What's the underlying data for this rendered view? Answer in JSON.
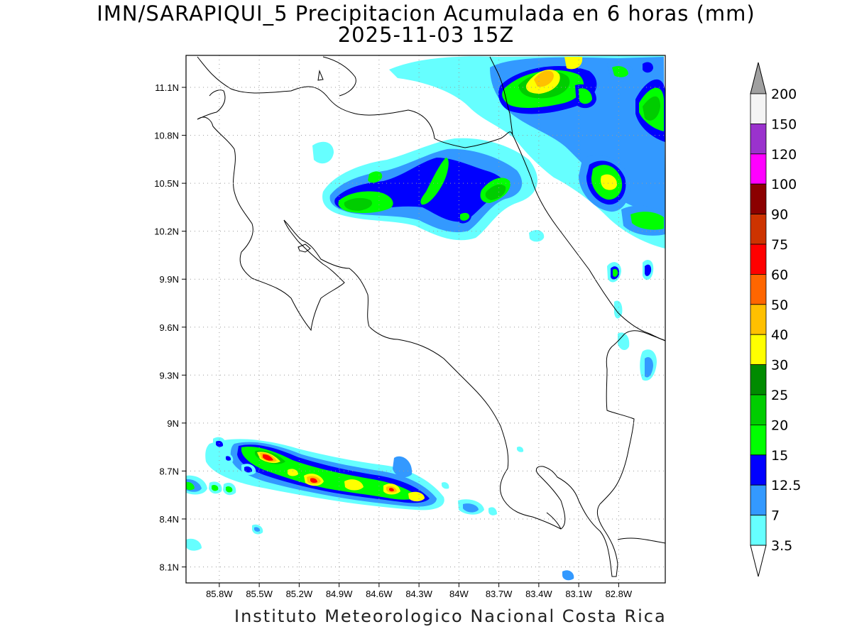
{
  "title": {
    "line1": "IMN/SARAPIQUI_5 Precipitacion Acumulada en 6 horas (mm)",
    "line2": "2025-11-03 15Z"
  },
  "credit": "Instituto Meteorologico Nacional Costa Rica",
  "map": {
    "lon_range": [
      -86.05,
      -82.45
    ],
    "lat_range": [
      8.0,
      11.3
    ],
    "lon_ticks": [
      {
        "value": -85.8,
        "label": "85.8W"
      },
      {
        "value": -85.5,
        "label": "85.5W"
      },
      {
        "value": -85.2,
        "label": "85.2W"
      },
      {
        "value": -84.9,
        "label": "84.9W"
      },
      {
        "value": -84.6,
        "label": "84.6W"
      },
      {
        "value": -84.3,
        "label": "84.3W"
      },
      {
        "value": -84.0,
        "label": "84W"
      },
      {
        "value": -83.7,
        "label": "83.7W"
      },
      {
        "value": -83.4,
        "label": "83.4W"
      },
      {
        "value": -83.1,
        "label": "83.1W"
      },
      {
        "value": -82.8,
        "label": "82.8W"
      }
    ],
    "lat_ticks": [
      {
        "value": 11.1,
        "label": "11.1N"
      },
      {
        "value": 10.8,
        "label": "10.8N"
      },
      {
        "value": 10.5,
        "label": "10.5N"
      },
      {
        "value": 10.2,
        "label": "10.2N"
      },
      {
        "value": 9.9,
        "label": "9.9N"
      },
      {
        "value": 9.6,
        "label": "9.6N"
      },
      {
        "value": 9.3,
        "label": "9.3N"
      },
      {
        "value": 9.0,
        "label": "9N"
      },
      {
        "value": 8.7,
        "label": "8.7N"
      },
      {
        "value": 8.4,
        "label": "8.4N"
      },
      {
        "value": 8.1,
        "label": "8.1N"
      }
    ],
    "grid": "dotted"
  },
  "colorbar": {
    "levels": [
      {
        "label": "200",
        "color": "#f4f4f4"
      },
      {
        "label": "150",
        "color": "#9a32cd"
      },
      {
        "label": "120",
        "color": "#ff00ff"
      },
      {
        "label": "100",
        "color": "#8b0000"
      },
      {
        "label": "90",
        "color": "#cd3300"
      },
      {
        "label": "75",
        "color": "#ff0000"
      },
      {
        "label": "60",
        "color": "#ff6600"
      },
      {
        "label": "50",
        "color": "#ffc000"
      },
      {
        "label": "40",
        "color": "#ffff00"
      },
      {
        "label": "30",
        "color": "#008b00"
      },
      {
        "label": "25",
        "color": "#00cd00"
      },
      {
        "label": "20",
        "color": "#00ff00"
      },
      {
        "label": "15",
        "color": "#0000ff"
      },
      {
        "label": "12.5",
        "color": "#3399ff"
      },
      {
        "label": "7",
        "color": "#66ffff"
      },
      {
        "label": "3.5",
        "color": ""
      }
    ],
    "top_arrow_color": "#a0a0a0",
    "bottom_arrow_color": "#ffffff"
  },
  "colors": {
    "c1": "#66ffff",
    "c2": "#3399ff",
    "c3": "#0000ff",
    "c4": "#00ff00",
    "c5": "#00cd00",
    "c6": "#ffff00",
    "c7": "#ffc000",
    "c8": "#ff0000"
  }
}
